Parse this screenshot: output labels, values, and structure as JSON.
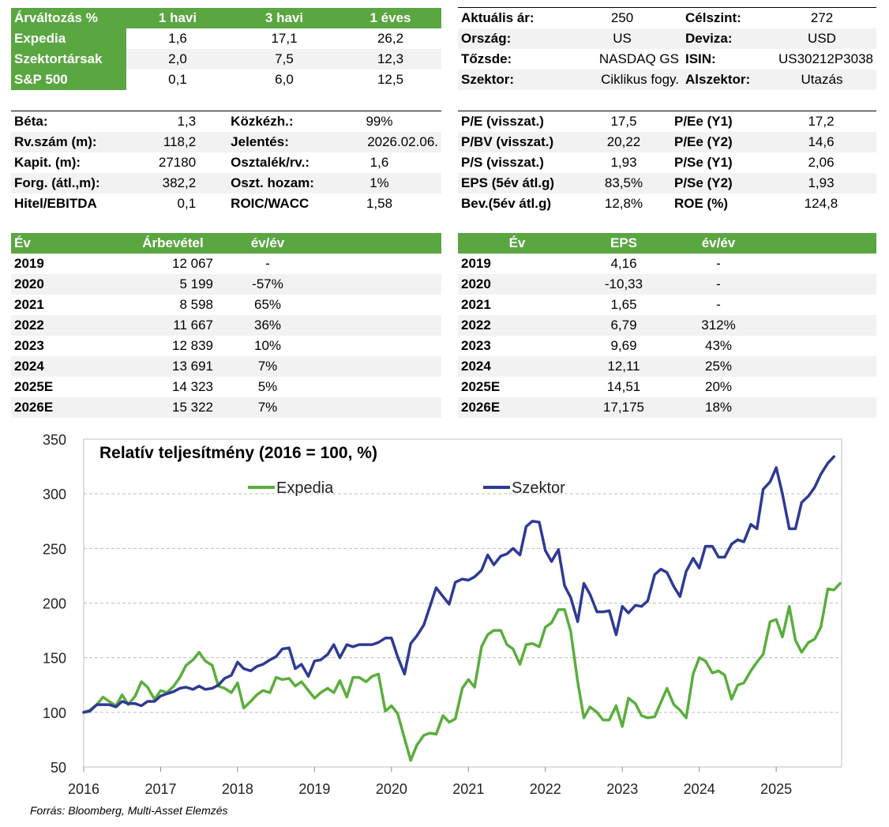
{
  "perf_table": {
    "headers": [
      "Árváltozás %",
      "1 havi",
      "3 havi",
      "1 éves"
    ],
    "rows": [
      {
        "label": "Expedia",
        "m1": "1,6",
        "m3": "17,1",
        "y1": "26,2"
      },
      {
        "label": "Szektortársak",
        "m1": "2,0",
        "m3": "7,5",
        "y1": "12,3"
      },
      {
        "label": "S&P 500",
        "m1": "0,1",
        "m3": "6,0",
        "y1": "12,5"
      }
    ]
  },
  "info_table": {
    "rows": [
      {
        "k1": "Aktuális ár:",
        "v1": "250",
        "k2": "Célszint:",
        "v2": "272"
      },
      {
        "k1": "Ország:",
        "v1": "US",
        "k2": "Deviza:",
        "v2": "USD"
      },
      {
        "k1": "Tőzsde:",
        "v1": "NASDAQ GS",
        "k2": "ISIN:",
        "v2": "US30212P3038"
      },
      {
        "k1": "Szektor:",
        "v1": "Ciklikus fogy.",
        "k2": "Alszektor:",
        "v2": "Utazás"
      }
    ]
  },
  "metrics_left": {
    "rows": [
      {
        "k1": "Béta:",
        "v1": "1,3",
        "k2": "Közkézh.:",
        "v2": "99%"
      },
      {
        "k1": "Rv.szám (m):",
        "v1": "118,2",
        "k2": "Jelentés:",
        "v2": "2026.02.06."
      },
      {
        "k1": "Kapit. (m):",
        "v1": "27180",
        "k2": "Osztalék/rv.:",
        "v2": "1,6"
      },
      {
        "k1": "Forg. (átl.,m):",
        "v1": "382,2",
        "k2": "Oszt. hozam:",
        "v2": "1%"
      },
      {
        "k1": "Hitel/EBITDA",
        "v1": "0,1",
        "k2": "ROIC/WACC",
        "v2": "1,58"
      }
    ]
  },
  "metrics_right": {
    "rows": [
      {
        "k1": "P/E (visszat.)",
        "v1": "17,5",
        "k2": "P/Ee (Y1)",
        "v2": "17,2"
      },
      {
        "k1": "P/BV (visszat.)",
        "v1": "20,22",
        "k2": "P/Ee (Y2)",
        "v2": "14,6"
      },
      {
        "k1": "P/S (visszat.)",
        "v1": "1,93",
        "k2": "P/Se (Y1)",
        "v2": "2,06"
      },
      {
        "k1": "EPS (5év átl.g)",
        "v1": "83,5%",
        "k2": "P/Se (Y2)",
        "v2": "1,93"
      },
      {
        "k1": "Bev.(5év átl.g)",
        "v1": "12,8%",
        "k2": "ROE (%)",
        "v2": "124,8"
      }
    ]
  },
  "revenue_table": {
    "headers": [
      "Év",
      "Árbevétel",
      "év/év"
    ],
    "rows": [
      {
        "year": "2019",
        "value": "12 067",
        "yoy": "-"
      },
      {
        "year": "2020",
        "value": "5 199",
        "yoy": "-57%"
      },
      {
        "year": "2021",
        "value": "8 598",
        "yoy": "65%"
      },
      {
        "year": "2022",
        "value": "11 667",
        "yoy": "36%"
      },
      {
        "year": "2023",
        "value": "12 839",
        "yoy": "10%"
      },
      {
        "year": "2024",
        "value": "13 691",
        "yoy": "7%"
      },
      {
        "year": "2025E",
        "value": "14 323",
        "yoy": "5%"
      },
      {
        "year": "2026E",
        "value": "15 322",
        "yoy": "7%"
      }
    ]
  },
  "eps_table": {
    "headers": [
      "Év",
      "EPS",
      "év/év"
    ],
    "rows": [
      {
        "year": "2019",
        "value": "4,16",
        "yoy": "-"
      },
      {
        "year": "2020",
        "value": "-10,33",
        "yoy": "-"
      },
      {
        "year": "2021",
        "value": "1,65",
        "yoy": "-"
      },
      {
        "year": "2022",
        "value": "6,79",
        "yoy": "312%"
      },
      {
        "year": "2023",
        "value": "9,69",
        "yoy": "43%"
      },
      {
        "year": "2024",
        "value": "12,11",
        "yoy": "25%"
      },
      {
        "year": "2025E",
        "value": "14,51",
        "yoy": "20%"
      },
      {
        "year": "2026E",
        "value": "17,175",
        "yoy": "18%"
      }
    ]
  },
  "chart_data": {
    "type": "line",
    "title": "Relatív teljesítmény (2016 = 100, %)",
    "xlabel": "",
    "ylabel": "",
    "xlim": [
      2016,
      2025.85
    ],
    "ylim": [
      50,
      350
    ],
    "yticks": [
      50,
      100,
      150,
      200,
      250,
      300,
      350
    ],
    "xticks": [
      "2016",
      "2017",
      "2018",
      "2019",
      "2020",
      "2021",
      "2022",
      "2023",
      "2024",
      "2025"
    ],
    "grid": true,
    "legend_position": "top",
    "series": [
      {
        "name": "Expedia",
        "color": "#5aae3c",
        "points": [
          [
            2016,
            100
          ],
          [
            2016.08,
            102
          ],
          [
            2016.17,
            107
          ],
          [
            2016.25,
            114
          ],
          [
            2016.33,
            110
          ],
          [
            2016.42,
            106
          ],
          [
            2016.5,
            116
          ],
          [
            2016.58,
            107
          ],
          [
            2016.67,
            115
          ],
          [
            2016.75,
            128
          ],
          [
            2016.83,
            123
          ],
          [
            2016.92,
            112
          ],
          [
            2017,
            120
          ],
          [
            2017.08,
            118
          ],
          [
            2017.17,
            124
          ],
          [
            2017.25,
            132
          ],
          [
            2017.33,
            143
          ],
          [
            2017.42,
            148
          ],
          [
            2017.5,
            155
          ],
          [
            2017.58,
            147
          ],
          [
            2017.67,
            143
          ],
          [
            2017.75,
            124
          ],
          [
            2017.83,
            122
          ],
          [
            2017.92,
            118
          ],
          [
            2018,
            127
          ],
          [
            2018.08,
            104
          ],
          [
            2018.17,
            110
          ],
          [
            2018.25,
            116
          ],
          [
            2018.33,
            120
          ],
          [
            2018.42,
            118
          ],
          [
            2018.5,
            132
          ],
          [
            2018.58,
            130
          ],
          [
            2018.67,
            131
          ],
          [
            2018.75,
            124
          ],
          [
            2018.83,
            128
          ],
          [
            2018.92,
            120
          ],
          [
            2019,
            113
          ],
          [
            2019.08,
            118
          ],
          [
            2019.17,
            122
          ],
          [
            2019.25,
            118
          ],
          [
            2019.33,
            129
          ],
          [
            2019.42,
            114
          ],
          [
            2019.5,
            132
          ],
          [
            2019.58,
            132
          ],
          [
            2019.67,
            128
          ],
          [
            2019.75,
            133
          ],
          [
            2019.83,
            135
          ],
          [
            2019.92,
            101
          ],
          [
            2020,
            106
          ],
          [
            2020.08,
            99
          ],
          [
            2020.17,
            76
          ],
          [
            2020.25,
            56
          ],
          [
            2020.33,
            70
          ],
          [
            2020.42,
            79
          ],
          [
            2020.5,
            81
          ],
          [
            2020.58,
            80
          ],
          [
            2020.67,
            97
          ],
          [
            2020.75,
            91
          ],
          [
            2020.83,
            94
          ],
          [
            2020.92,
            122
          ],
          [
            2021,
            130
          ],
          [
            2021.08,
            123
          ],
          [
            2021.17,
            160
          ],
          [
            2021.25,
            171
          ],
          [
            2021.33,
            175
          ],
          [
            2021.42,
            175
          ],
          [
            2021.5,
            162
          ],
          [
            2021.58,
            158
          ],
          [
            2021.67,
            144
          ],
          [
            2021.75,
            162
          ],
          [
            2021.83,
            163
          ],
          [
            2021.92,
            160
          ],
          [
            2022,
            178
          ],
          [
            2022.08,
            182
          ],
          [
            2022.17,
            194
          ],
          [
            2022.25,
            194
          ],
          [
            2022.33,
            174
          ],
          [
            2022.42,
            128
          ],
          [
            2022.5,
            95
          ],
          [
            2022.58,
            105
          ],
          [
            2022.67,
            100
          ],
          [
            2022.75,
            93
          ],
          [
            2022.83,
            93
          ],
          [
            2022.92,
            106
          ],
          [
            2023,
            87
          ],
          [
            2023.08,
            113
          ],
          [
            2023.17,
            108
          ],
          [
            2023.25,
            97
          ],
          [
            2023.33,
            95
          ],
          [
            2023.42,
            96
          ],
          [
            2023.5,
            109
          ],
          [
            2023.58,
            122
          ],
          [
            2023.67,
            107
          ],
          [
            2023.75,
            102
          ],
          [
            2023.83,
            95
          ],
          [
            2023.92,
            135
          ],
          [
            2024,
            150
          ],
          [
            2024.08,
            147
          ],
          [
            2024.17,
            136
          ],
          [
            2024.25,
            138
          ],
          [
            2024.33,
            134
          ],
          [
            2024.42,
            112
          ],
          [
            2024.5,
            125
          ],
          [
            2024.58,
            127
          ],
          [
            2024.67,
            138
          ],
          [
            2024.75,
            146
          ],
          [
            2024.83,
            153
          ],
          [
            2024.92,
            183
          ],
          [
            2025,
            185
          ],
          [
            2025.08,
            169
          ],
          [
            2025.17,
            197
          ],
          [
            2025.25,
            166
          ],
          [
            2025.33,
            155
          ],
          [
            2025.42,
            164
          ],
          [
            2025.5,
            167
          ],
          [
            2025.58,
            178
          ],
          [
            2025.67,
            213
          ],
          [
            2025.75,
            212
          ],
          [
            2025.83,
            218
          ]
        ]
      },
      {
        "name": "Szektor",
        "color": "#2e3a93",
        "points": [
          [
            2016,
            100
          ],
          [
            2016.08,
            101
          ],
          [
            2016.17,
            107
          ],
          [
            2016.25,
            107
          ],
          [
            2016.33,
            107
          ],
          [
            2016.42,
            105
          ],
          [
            2016.5,
            110
          ],
          [
            2016.58,
            108
          ],
          [
            2016.67,
            108
          ],
          [
            2016.75,
            106
          ],
          [
            2016.83,
            110
          ],
          [
            2016.92,
            110
          ],
          [
            2017,
            115
          ],
          [
            2017.08,
            117
          ],
          [
            2017.17,
            119
          ],
          [
            2017.25,
            122
          ],
          [
            2017.33,
            123
          ],
          [
            2017.42,
            121
          ],
          [
            2017.5,
            124
          ],
          [
            2017.58,
            121
          ],
          [
            2017.67,
            122
          ],
          [
            2017.75,
            125
          ],
          [
            2017.83,
            131
          ],
          [
            2017.92,
            134
          ],
          [
            2018,
            146
          ],
          [
            2018.08,
            140
          ],
          [
            2018.17,
            138
          ],
          [
            2018.25,
            142
          ],
          [
            2018.33,
            144
          ],
          [
            2018.42,
            148
          ],
          [
            2018.5,
            151
          ],
          [
            2018.58,
            158
          ],
          [
            2018.67,
            159
          ],
          [
            2018.75,
            140
          ],
          [
            2018.83,
            144
          ],
          [
            2018.92,
            133
          ],
          [
            2019,
            147
          ],
          [
            2019.08,
            148
          ],
          [
            2019.17,
            153
          ],
          [
            2019.25,
            162
          ],
          [
            2019.33,
            150
          ],
          [
            2019.42,
            162
          ],
          [
            2019.5,
            160
          ],
          [
            2019.58,
            162
          ],
          [
            2019.67,
            162
          ],
          [
            2019.75,
            162
          ],
          [
            2019.83,
            164
          ],
          [
            2019.92,
            168
          ],
          [
            2020,
            168
          ],
          [
            2020.08,
            151
          ],
          [
            2020.17,
            135
          ],
          [
            2020.25,
            163
          ],
          [
            2020.33,
            170
          ],
          [
            2020.42,
            180
          ],
          [
            2020.5,
            197
          ],
          [
            2020.58,
            214
          ],
          [
            2020.67,
            206
          ],
          [
            2020.75,
            199
          ],
          [
            2020.83,
            219
          ],
          [
            2020.92,
            222
          ],
          [
            2021,
            221
          ],
          [
            2021.08,
            224
          ],
          [
            2021.17,
            230
          ],
          [
            2021.25,
            244
          ],
          [
            2021.33,
            235
          ],
          [
            2021.42,
            243
          ],
          [
            2021.5,
            245
          ],
          [
            2021.58,
            250
          ],
          [
            2021.67,
            244
          ],
          [
            2021.75,
            270
          ],
          [
            2021.83,
            275
          ],
          [
            2021.92,
            274
          ],
          [
            2022,
            248
          ],
          [
            2022.08,
            238
          ],
          [
            2022.17,
            249
          ],
          [
            2022.25,
            216
          ],
          [
            2022.33,
            205
          ],
          [
            2022.42,
            183
          ],
          [
            2022.5,
            218
          ],
          [
            2022.58,
            208
          ],
          [
            2022.67,
            192
          ],
          [
            2022.75,
            192
          ],
          [
            2022.83,
            193
          ],
          [
            2022.92,
            171
          ],
          [
            2023,
            197
          ],
          [
            2023.08,
            191
          ],
          [
            2023.17,
            198
          ],
          [
            2023.25,
            197
          ],
          [
            2023.33,
            202
          ],
          [
            2023.42,
            226
          ],
          [
            2023.5,
            231
          ],
          [
            2023.58,
            228
          ],
          [
            2023.67,
            215
          ],
          [
            2023.75,
            206
          ],
          [
            2023.83,
            229
          ],
          [
            2023.92,
            241
          ],
          [
            2024,
            232
          ],
          [
            2024.08,
            252
          ],
          [
            2024.17,
            252
          ],
          [
            2024.25,
            242
          ],
          [
            2024.33,
            242
          ],
          [
            2024.42,
            254
          ],
          [
            2024.5,
            258
          ],
          [
            2024.58,
            256
          ],
          [
            2024.67,
            272
          ],
          [
            2024.75,
            268
          ],
          [
            2024.83,
            304
          ],
          [
            2024.92,
            311
          ],
          [
            2025,
            324
          ],
          [
            2025.08,
            300
          ],
          [
            2025.17,
            268
          ],
          [
            2025.25,
            268
          ],
          [
            2025.33,
            292
          ],
          [
            2025.42,
            298
          ],
          [
            2025.5,
            306
          ],
          [
            2025.58,
            318
          ],
          [
            2025.67,
            328
          ],
          [
            2025.75,
            334
          ]
        ]
      }
    ]
  },
  "source_note": "Forrás: Bloomberg, Multi-Asset Elemzés"
}
